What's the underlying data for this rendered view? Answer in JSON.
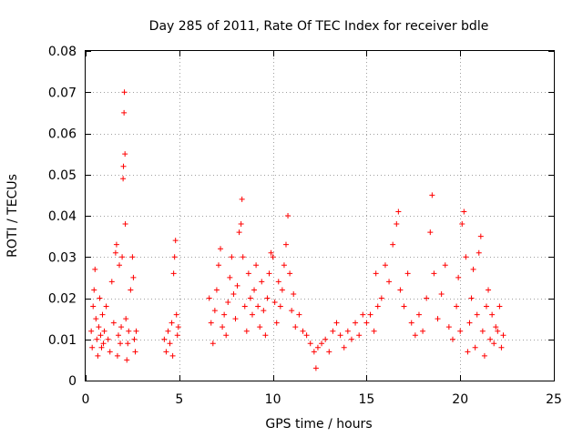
{
  "chart_data": {
    "type": "scatter",
    "title": "Day 285 of 2011, Rate Of TEC Index for receiver bdle",
    "xlabel": "GPS time / hours",
    "ylabel": "ROTI / TECUs",
    "xlim": [
      0,
      25
    ],
    "ylim": [
      0,
      0.08
    ],
    "x_ticks": [
      0,
      5,
      10,
      15,
      20,
      25
    ],
    "x_tick_labels": [
      "0",
      "5",
      "10",
      "15",
      "20",
      "25"
    ],
    "y_ticks": [
      0,
      0.01,
      0.02,
      0.03,
      0.04,
      0.05,
      0.06,
      0.07,
      0.08
    ],
    "y_tick_labels": [
      "0",
      "0.01",
      "0.02",
      "0.03",
      "0.04",
      "0.05",
      "0.06",
      "0.07",
      "0.08"
    ],
    "grid": true,
    "marker": "plus",
    "color": "#ff0000",
    "series": [
      {
        "name": "ROTI",
        "points": [
          [
            0.3,
            0.012
          ],
          [
            0.35,
            0.008
          ],
          [
            0.4,
            0.018
          ],
          [
            0.45,
            0.022
          ],
          [
            0.5,
            0.027
          ],
          [
            0.55,
            0.015
          ],
          [
            0.6,
            0.01
          ],
          [
            0.65,
            0.006
          ],
          [
            0.7,
            0.013
          ],
          [
            0.75,
            0.02
          ],
          [
            0.8,
            0.011
          ],
          [
            0.85,
            0.008
          ],
          [
            0.9,
            0.016
          ],
          [
            0.95,
            0.009
          ],
          [
            1.0,
            0.012
          ],
          [
            1.1,
            0.018
          ],
          [
            1.2,
            0.01
          ],
          [
            1.3,
            0.007
          ],
          [
            1.4,
            0.024
          ],
          [
            1.5,
            0.014
          ],
          [
            1.6,
            0.031
          ],
          [
            1.65,
            0.033
          ],
          [
            1.7,
            0.006
          ],
          [
            1.75,
            0.011
          ],
          [
            1.8,
            0.028
          ],
          [
            1.85,
            0.009
          ],
          [
            1.9,
            0.013
          ],
          [
            1.95,
            0.03
          ],
          [
            2.0,
            0.049
          ],
          [
            2.02,
            0.052
          ],
          [
            2.05,
            0.065
          ],
          [
            2.07,
            0.07
          ],
          [
            2.1,
            0.055
          ],
          [
            2.12,
            0.038
          ],
          [
            2.15,
            0.015
          ],
          [
            2.2,
            0.005
          ],
          [
            2.25,
            0.009
          ],
          [
            2.3,
            0.012
          ],
          [
            2.4,
            0.022
          ],
          [
            2.5,
            0.03
          ],
          [
            2.55,
            0.025
          ],
          [
            2.6,
            0.01
          ],
          [
            2.65,
            0.007
          ],
          [
            2.7,
            0.012
          ],
          [
            4.2,
            0.01
          ],
          [
            4.3,
            0.007
          ],
          [
            4.4,
            0.012
          ],
          [
            4.5,
            0.009
          ],
          [
            4.6,
            0.014
          ],
          [
            4.65,
            0.006
          ],
          [
            4.7,
            0.026
          ],
          [
            4.75,
            0.03
          ],
          [
            4.8,
            0.034
          ],
          [
            4.85,
            0.016
          ],
          [
            4.9,
            0.011
          ],
          [
            4.95,
            0.013
          ],
          [
            6.6,
            0.02
          ],
          [
            6.7,
            0.014
          ],
          [
            6.8,
            0.009
          ],
          [
            6.9,
            0.017
          ],
          [
            7.0,
            0.022
          ],
          [
            7.1,
            0.028
          ],
          [
            7.2,
            0.032
          ],
          [
            7.3,
            0.013
          ],
          [
            7.4,
            0.016
          ],
          [
            7.5,
            0.011
          ],
          [
            7.6,
            0.019
          ],
          [
            7.7,
            0.025
          ],
          [
            7.8,
            0.03
          ],
          [
            7.9,
            0.021
          ],
          [
            8.0,
            0.015
          ],
          [
            8.1,
            0.023
          ],
          [
            8.2,
            0.036
          ],
          [
            8.3,
            0.038
          ],
          [
            8.35,
            0.044
          ],
          [
            8.4,
            0.03
          ],
          [
            8.5,
            0.018
          ],
          [
            8.6,
            0.012
          ],
          [
            8.7,
            0.026
          ],
          [
            8.8,
            0.02
          ],
          [
            8.9,
            0.016
          ],
          [
            9.0,
            0.022
          ],
          [
            9.1,
            0.028
          ],
          [
            9.2,
            0.018
          ],
          [
            9.3,
            0.013
          ],
          [
            9.4,
            0.024
          ],
          [
            9.5,
            0.017
          ],
          [
            9.6,
            0.011
          ],
          [
            9.7,
            0.02
          ],
          [
            9.8,
            0.026
          ],
          [
            9.9,
            0.031
          ],
          [
            10.0,
            0.03
          ],
          [
            10.1,
            0.019
          ],
          [
            10.2,
            0.014
          ],
          [
            10.3,
            0.024
          ],
          [
            10.4,
            0.018
          ],
          [
            10.5,
            0.022
          ],
          [
            10.6,
            0.028
          ],
          [
            10.7,
            0.033
          ],
          [
            10.8,
            0.04
          ],
          [
            10.9,
            0.026
          ],
          [
            11.0,
            0.017
          ],
          [
            11.1,
            0.021
          ],
          [
            11.2,
            0.013
          ],
          [
            11.4,
            0.016
          ],
          [
            11.6,
            0.012
          ],
          [
            11.8,
            0.011
          ],
          [
            12.0,
            0.009
          ],
          [
            12.2,
            0.007
          ],
          [
            12.3,
            0.003
          ],
          [
            12.4,
            0.008
          ],
          [
            12.6,
            0.009
          ],
          [
            12.8,
            0.01
          ],
          [
            13.0,
            0.007
          ],
          [
            13.2,
            0.012
          ],
          [
            13.4,
            0.014
          ],
          [
            13.6,
            0.011
          ],
          [
            13.8,
            0.008
          ],
          [
            14.0,
            0.012
          ],
          [
            14.2,
            0.01
          ],
          [
            14.4,
            0.014
          ],
          [
            14.6,
            0.011
          ],
          [
            14.8,
            0.016
          ],
          [
            15.0,
            0.014
          ],
          [
            15.2,
            0.016
          ],
          [
            15.4,
            0.012
          ],
          [
            15.5,
            0.026
          ],
          [
            15.6,
            0.018
          ],
          [
            15.8,
            0.02
          ],
          [
            16.0,
            0.028
          ],
          [
            16.2,
            0.024
          ],
          [
            16.4,
            0.033
          ],
          [
            16.6,
            0.038
          ],
          [
            16.7,
            0.041
          ],
          [
            16.8,
            0.022
          ],
          [
            17.0,
            0.018
          ],
          [
            17.2,
            0.026
          ],
          [
            17.4,
            0.014
          ],
          [
            17.6,
            0.011
          ],
          [
            17.8,
            0.016
          ],
          [
            18.0,
            0.012
          ],
          [
            18.2,
            0.02
          ],
          [
            18.4,
            0.036
          ],
          [
            18.5,
            0.045
          ],
          [
            18.6,
            0.026
          ],
          [
            18.8,
            0.015
          ],
          [
            19.0,
            0.021
          ],
          [
            19.2,
            0.028
          ],
          [
            19.4,
            0.013
          ],
          [
            19.6,
            0.01
          ],
          [
            19.8,
            0.018
          ],
          [
            19.9,
            0.025
          ],
          [
            20.0,
            0.012
          ],
          [
            20.1,
            0.038
          ],
          [
            20.2,
            0.041
          ],
          [
            20.3,
            0.03
          ],
          [
            20.4,
            0.007
          ],
          [
            20.5,
            0.014
          ],
          [
            20.6,
            0.02
          ],
          [
            20.7,
            0.027
          ],
          [
            20.8,
            0.008
          ],
          [
            20.9,
            0.016
          ],
          [
            21.0,
            0.031
          ],
          [
            21.1,
            0.035
          ],
          [
            21.2,
            0.012
          ],
          [
            21.3,
            0.006
          ],
          [
            21.4,
            0.018
          ],
          [
            21.5,
            0.022
          ],
          [
            21.6,
            0.01
          ],
          [
            21.7,
            0.016
          ],
          [
            21.8,
            0.009
          ],
          [
            21.9,
            0.013
          ],
          [
            22.0,
            0.012
          ],
          [
            22.1,
            0.018
          ],
          [
            22.2,
            0.008
          ],
          [
            22.3,
            0.011
          ]
        ]
      }
    ]
  }
}
